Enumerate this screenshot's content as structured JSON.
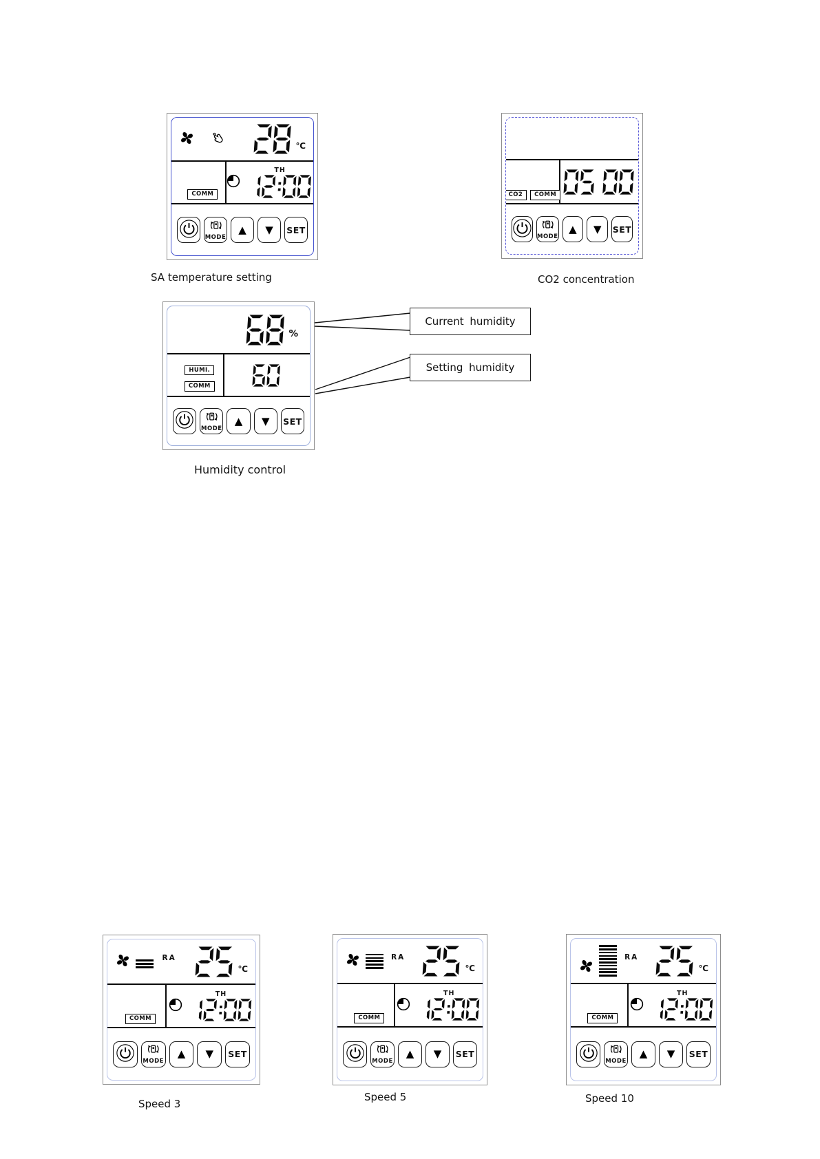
{
  "colors": {
    "outer_border": "#8d8d8d",
    "inner_border_solid_blue": "#4553cf",
    "inner_border_dashed_blue": "#5b5bd8",
    "inner_border_light_blue": "#9fb0dc",
    "inner_border_lavender": "#b9c3e8",
    "ink": "#0b0b0b"
  },
  "icons": {
    "fan": "pinwheel-fan-icon",
    "hand": "hand-touch-icon",
    "clock": "quarter-filled-clock-icon",
    "power": "power-standby-icon",
    "mode": "device-with-orbit-arrows-icon",
    "up": "▲",
    "down": "▼"
  },
  "shared": {
    "mode_label": "MODE",
    "set_label": "SET",
    "up_glyph": "▲",
    "down_glyph": "▼",
    "comm_badge": "COMM",
    "th_label": "TH",
    "time": "12:00",
    "temp_unit": "℃"
  },
  "sa_temp_panel": {
    "caption": "SA temperature setting",
    "temp": "28"
  },
  "co2_panel": {
    "caption": "CO2 concentration",
    "value": "05 00",
    "co2_badge": "CO2"
  },
  "humidity_panel": {
    "caption": "Humidity control",
    "current_value": "68",
    "unit": "%",
    "humi_badge": "HUMI.",
    "setting_value": "60"
  },
  "callouts": {
    "current": "Current humidity",
    "setting": "Setting humidity"
  },
  "speed_panels": [
    {
      "caption": "Speed 3",
      "ra_label": "RA",
      "temp": "25",
      "fan_bars": 3
    },
    {
      "caption": "Speed 5",
      "ra_label": "RA",
      "temp": "25",
      "fan_bars": 5
    },
    {
      "caption": "Speed 10",
      "ra_label": "RA",
      "temp": "25",
      "fan_bars": 10
    }
  ]
}
